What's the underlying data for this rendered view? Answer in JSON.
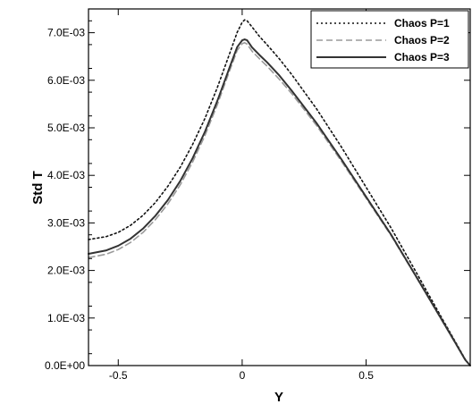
{
  "chart_data": {
    "type": "line",
    "title": "",
    "xlabel": "Y",
    "ylabel": "Std T",
    "xlim": [
      -0.62,
      0.92
    ],
    "ylim": [
      0,
      0.0075
    ],
    "x_ticks": [
      -0.5,
      0,
      0.5
    ],
    "x_tick_labels": [
      "-0.5",
      "0",
      "0.5"
    ],
    "y_ticks": [
      0,
      0.001,
      0.002,
      0.003,
      0.004,
      0.005,
      0.006,
      0.007
    ],
    "y_tick_labels": [
      "0.0E+00",
      "1.0E-03",
      "2.0E-03",
      "3.0E-03",
      "4.0E-03",
      "5.0E-03",
      "6.0E-03",
      "7.0E-03"
    ],
    "grid": false,
    "legend_position": "top-right",
    "series": [
      {
        "name": "Chaos P=1",
        "color": "#111111",
        "style": "dotted",
        "x": [
          -0.62,
          -0.55,
          -0.5,
          -0.45,
          -0.4,
          -0.35,
          -0.3,
          -0.25,
          -0.2,
          -0.15,
          -0.1,
          -0.05,
          -0.02,
          0.0,
          0.01,
          0.02,
          0.04,
          0.07,
          0.1,
          0.15,
          0.2,
          0.3,
          0.4,
          0.5,
          0.6,
          0.7,
          0.8,
          0.86,
          0.9,
          0.92
        ],
        "y": [
          0.00265,
          0.00271,
          0.0028,
          0.00295,
          0.00316,
          0.00343,
          0.00377,
          0.00417,
          0.00465,
          0.0052,
          0.00585,
          0.00657,
          0.00701,
          0.00722,
          0.00727,
          0.00725,
          0.00712,
          0.00692,
          0.00675,
          0.00645,
          0.00612,
          0.0054,
          0.0046,
          0.00375,
          0.0029,
          0.00198,
          0.00105,
          0.0005,
          0.00013,
          0.0
        ]
      },
      {
        "name": "Chaos P=2",
        "color": "#9a9a9a",
        "style": "dashed",
        "x": [
          -0.62,
          -0.55,
          -0.5,
          -0.45,
          -0.4,
          -0.35,
          -0.3,
          -0.25,
          -0.2,
          -0.15,
          -0.1,
          -0.05,
          -0.02,
          0.0,
          0.01,
          0.02,
          0.04,
          0.07,
          0.1,
          0.15,
          0.2,
          0.3,
          0.4,
          0.5,
          0.6,
          0.7,
          0.8,
          0.86,
          0.9,
          0.92
        ],
        "y": [
          0.00227,
          0.00234,
          0.00244,
          0.00259,
          0.0028,
          0.00307,
          0.0034,
          0.0038,
          0.00428,
          0.00484,
          0.00549,
          0.00621,
          0.00663,
          0.00677,
          0.00679,
          0.00676,
          0.00661,
          0.00645,
          0.0063,
          0.00602,
          0.00572,
          0.00505,
          0.0043,
          0.00352,
          0.00274,
          0.00188,
          0.001,
          0.00047,
          0.00012,
          0.0
        ]
      },
      {
        "name": "Chaos P=3",
        "color": "#333333",
        "style": "solid",
        "x": [
          -0.62,
          -0.55,
          -0.5,
          -0.45,
          -0.4,
          -0.35,
          -0.3,
          -0.25,
          -0.2,
          -0.15,
          -0.1,
          -0.05,
          -0.02,
          0.0,
          0.01,
          0.02,
          0.04,
          0.07,
          0.1,
          0.15,
          0.2,
          0.3,
          0.4,
          0.5,
          0.6,
          0.7,
          0.8,
          0.86,
          0.9,
          0.92
        ],
        "y": [
          0.00235,
          0.00242,
          0.00252,
          0.00267,
          0.00288,
          0.00315,
          0.00348,
          0.00388,
          0.00436,
          0.00492,
          0.00557,
          0.00628,
          0.0067,
          0.00684,
          0.00686,
          0.00684,
          0.00669,
          0.00653,
          0.00638,
          0.0061,
          0.00578,
          0.0051,
          0.00434,
          0.00355,
          0.00276,
          0.00189,
          0.00101,
          0.00048,
          0.00012,
          0.0
        ]
      }
    ]
  }
}
